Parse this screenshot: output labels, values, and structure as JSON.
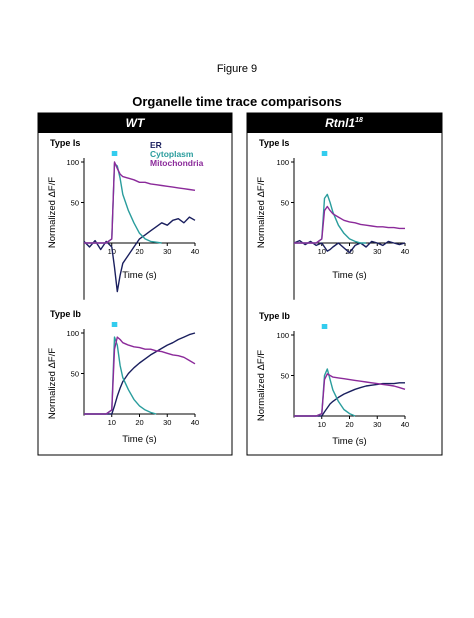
{
  "figure_label": "Figure 9",
  "title": "Organelle time trace comparisons",
  "panels": [
    {
      "text": "WT"
    },
    {
      "text": "Rtnl1",
      "superscript": "18"
    }
  ],
  "chart_data": [
    {
      "type": "line",
      "title": "Type Is",
      "ylabel": "Normalized ΔF/F",
      "xlabel": "Time (s)",
      "xlim": [
        0,
        40
      ],
      "xticks": [
        10,
        20,
        30,
        40
      ],
      "ylim": [
        -70,
        105
      ],
      "yticks": [
        50,
        100
      ],
      "stimulus": {
        "start": 10,
        "end": 12,
        "color": "#33ccee"
      },
      "legend": true,
      "x": [
        0,
        2,
        4,
        6,
        8,
        10,
        11,
        12,
        13,
        14,
        16,
        18,
        20,
        22,
        24,
        26,
        28,
        30,
        32,
        34,
        36,
        38,
        40
      ],
      "series": [
        {
          "name": "ER",
          "color": "#1a1f5e",
          "values": [
            2,
            -5,
            3,
            -8,
            2,
            -5,
            -30,
            -60,
            -40,
            -25,
            -15,
            -5,
            5,
            10,
            15,
            20,
            25,
            22,
            28,
            30,
            25,
            32,
            28
          ]
        },
        {
          "name": "Cytoplasm",
          "color": "#2a9d9d",
          "values": [
            0,
            0,
            0,
            0,
            0,
            5,
            98,
            95,
            80,
            60,
            40,
            25,
            12,
            5,
            2,
            1,
            0,
            null,
            null,
            null,
            null,
            null,
            null
          ]
        },
        {
          "name": "Mitochondria",
          "color": "#8b2a9a",
          "values": [
            0,
            0,
            0,
            0,
            0,
            5,
            100,
            92,
            85,
            82,
            80,
            78,
            75,
            75,
            73,
            72,
            71,
            70,
            69,
            68,
            67,
            66,
            65
          ]
        }
      ]
    },
    {
      "type": "line",
      "title": "Type Is",
      "ylabel": "Normalized ΔF/F",
      "xlabel": "Time (s)",
      "xlim": [
        0,
        40
      ],
      "xticks": [
        10,
        20,
        30,
        40
      ],
      "ylim": [
        -70,
        105
      ],
      "yticks": [
        50,
        100
      ],
      "stimulus": {
        "start": 10,
        "end": 12,
        "color": "#33ccee"
      },
      "legend": false,
      "x": [
        0,
        2,
        4,
        6,
        8,
        10,
        11,
        12,
        13,
        14,
        16,
        18,
        20,
        22,
        24,
        26,
        28,
        30,
        32,
        34,
        36,
        38,
        40
      ],
      "series": [
        {
          "color": "#1a1f5e",
          "values": [
            0,
            3,
            -2,
            2,
            -3,
            0,
            -5,
            -10,
            -8,
            -5,
            0,
            -6,
            -12,
            -3,
            0,
            -5,
            2,
            0,
            -3,
            2,
            0,
            -2,
            0
          ]
        },
        {
          "color": "#2a9d9d",
          "values": [
            0,
            0,
            0,
            0,
            0,
            5,
            55,
            60,
            50,
            38,
            22,
            12,
            5,
            2,
            0,
            0,
            null,
            null,
            null,
            null,
            null,
            null,
            null
          ]
        },
        {
          "color": "#8b2a9a",
          "values": [
            0,
            0,
            0,
            0,
            0,
            5,
            40,
            45,
            40,
            36,
            32,
            28,
            26,
            25,
            23,
            22,
            21,
            20,
            20,
            19,
            19,
            18,
            18
          ]
        }
      ]
    },
    {
      "type": "line",
      "title": "Type Ib",
      "ylabel": "Normalized ΔF/F",
      "xlabel": "Time (s)",
      "xlim": [
        0,
        40
      ],
      "xticks": [
        10,
        20,
        30,
        40
      ],
      "ylim": [
        -2,
        105
      ],
      "yticks": [
        50,
        100
      ],
      "stimulus": {
        "start": 10,
        "end": 12,
        "color": "#33ccee"
      },
      "legend": false,
      "x": [
        0,
        2,
        4,
        6,
        8,
        10,
        11,
        12,
        13,
        14,
        16,
        18,
        20,
        22,
        24,
        26,
        28,
        30,
        32,
        34,
        36,
        38,
        40
      ],
      "series": [
        {
          "color": "#1a1f5e",
          "values": [
            0,
            0,
            0,
            0,
            0,
            0,
            10,
            22,
            32,
            40,
            50,
            57,
            63,
            68,
            73,
            77,
            81,
            85,
            88,
            92,
            95,
            98,
            100
          ]
        },
        {
          "color": "#2a9d9d",
          "values": [
            0,
            0,
            0,
            0,
            0,
            5,
            95,
            85,
            60,
            45,
            30,
            18,
            10,
            5,
            2,
            0,
            null,
            null,
            null,
            null,
            null,
            null,
            null
          ]
        },
        {
          "color": "#8b2a9a",
          "values": [
            0,
            0,
            0,
            0,
            0,
            5,
            80,
            95,
            92,
            88,
            85,
            83,
            82,
            80,
            80,
            78,
            77,
            75,
            73,
            72,
            70,
            66,
            62
          ]
        }
      ]
    },
    {
      "type": "line",
      "title": "Type Ib",
      "ylabel": "Normalized ΔF/F",
      "xlabel": "Time (s)",
      "xlim": [
        0,
        40
      ],
      "xticks": [
        10,
        20,
        30,
        40
      ],
      "ylim": [
        -2,
        105
      ],
      "yticks": [
        50,
        100
      ],
      "stimulus": {
        "start": 10,
        "end": 12,
        "color": "#33ccee"
      },
      "legend": false,
      "x": [
        0,
        2,
        4,
        6,
        8,
        10,
        11,
        12,
        13,
        14,
        16,
        18,
        20,
        22,
        24,
        26,
        28,
        30,
        32,
        34,
        36,
        38,
        40
      ],
      "series": [
        {
          "color": "#1a1f5e",
          "values": [
            0,
            0,
            0,
            0,
            0,
            0,
            5,
            10,
            15,
            18,
            23,
            27,
            30,
            33,
            35,
            37,
            38,
            39,
            40,
            40,
            40,
            41,
            41
          ]
        },
        {
          "color": "#2a9d9d",
          "values": [
            0,
            0,
            0,
            0,
            0,
            3,
            50,
            58,
            45,
            32,
            18,
            8,
            3,
            0,
            null,
            null,
            null,
            null,
            null,
            null,
            null,
            null,
            null
          ]
        },
        {
          "color": "#8b2a9a",
          "values": [
            0,
            0,
            0,
            0,
            0,
            3,
            45,
            52,
            50,
            48,
            47,
            46,
            45,
            44,
            43,
            42,
            41,
            40,
            39,
            38,
            37,
            35,
            33
          ]
        }
      ]
    }
  ]
}
